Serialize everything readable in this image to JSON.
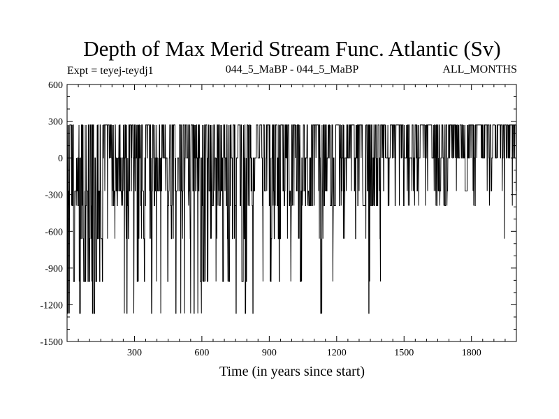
{
  "chart_data": {
    "type": "line",
    "title": "Depth of Max Merid Stream Func. Atlantic (Sv)",
    "experiment": "Expt = teyej-teydj1",
    "period": "044_5_MaBP - 044_5_MaBP",
    "months": "ALL_MONTHS",
    "xlabel": "Time (in years since start)",
    "ylabel": "",
    "xlim": [
      0,
      2000
    ],
    "ylim": [
      -1500,
      600
    ],
    "x_ticks": [
      300,
      600,
      900,
      1200,
      1500,
      1800
    ],
    "y_ticks": [
      600,
      300,
      0,
      -300,
      -600,
      -900,
      -1200,
      -1500
    ],
    "x_tick_labels": [
      "300",
      "600",
      "900",
      "1200",
      "1500",
      "1800"
    ],
    "y_tick_labels": [
      "600",
      "300",
      "0",
      "-300",
      "-600",
      "-900",
      "-1200",
      "-1500"
    ],
    "series_description": "Annual values over 2000 years; the series oscillates rapidly between discrete depth levels of about 270, 0, -270, -390, -660, -1010 and -1270, with an initial value near 400 and mostly shallow (0 to 270) values after year 1400.",
    "levels": [
      270,
      0,
      -270,
      -390,
      -660,
      -1010,
      -1270
    ],
    "series": [
      {
        "name": "Depth of Max Merid Stream Func.",
        "x_start": 0,
        "x_step": 1,
        "count": 2000,
        "initial_value": 400,
        "color": "#000000"
      }
    ]
  }
}
